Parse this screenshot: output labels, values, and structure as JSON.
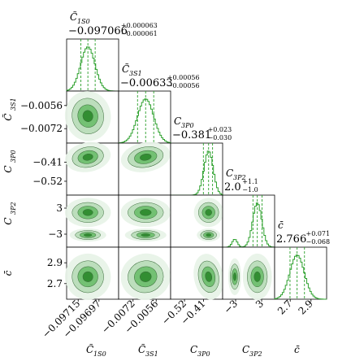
{
  "chart_data": {
    "type": "corner",
    "parameters": [
      {
        "label": "C̃",
        "sub": "1S0",
        "median": -0.097066,
        "err_plus": 6.3e-05,
        "err_minus": 6.1e-05,
        "title_value": "−0.097066",
        "title_plus": "+0.000063",
        "title_minus": "−0.000061",
        "ticks": [
          -0.09715,
          -0.09697
        ],
        "tick_labels": [
          "−0.09715",
          "−0.09697"
        ],
        "range": [
          -0.09725,
          -0.0968
        ]
      },
      {
        "label": "C̃",
        "sub": "3S1",
        "median": -0.00633,
        "err_plus": 0.00056,
        "err_minus": 0.00056,
        "title_value": "−0.00633",
        "title_plus": "+0.00056",
        "title_minus": "−0.00056",
        "ticks": [
          -0.0072,
          -0.0056
        ],
        "tick_labels": [
          "−0.0072",
          "−0.0056"
        ],
        "range": [
          -0.0082,
          -0.0046
        ]
      },
      {
        "label": "C",
        "sub": "3P0",
        "median": -0.381,
        "err_plus": 0.023,
        "err_minus": 0.03,
        "title_value": "−0.381",
        "title_plus": "+0.023",
        "title_minus": "−0.030",
        "ticks": [
          -0.52,
          -0.41
        ],
        "tick_labels": [
          "−0.52",
          "−0.41"
        ],
        "range": [
          -0.6,
          -0.3
        ]
      },
      {
        "label": "C",
        "sub": "3P2",
        "median": 2.0,
        "err_plus": 1.1,
        "err_minus": 1.0,
        "title_value": "2.0",
        "title_plus": "+1.1",
        "title_minus": "−1.0",
        "ticks": [
          -3,
          3
        ],
        "tick_labels": [
          "−3",
          "3"
        ],
        "range": [
          -6,
          6
        ]
      },
      {
        "label": "c̄",
        "sub": "",
        "median": 2.766,
        "err_plus": 0.071,
        "err_minus": 0.068,
        "title_value": "2.766",
        "title_plus": "+0.071",
        "title_minus": "−0.068",
        "ticks": [
          2.7,
          2.9
        ],
        "tick_labels": [
          "2.7",
          "2.9"
        ],
        "range": [
          2.55,
          3.05
        ]
      }
    ],
    "color": "#2ca02c",
    "contour_colors": [
      "#e8f3e8",
      "#b9dcb9",
      "#6fbf6f",
      "#2e8b2e"
    ]
  }
}
